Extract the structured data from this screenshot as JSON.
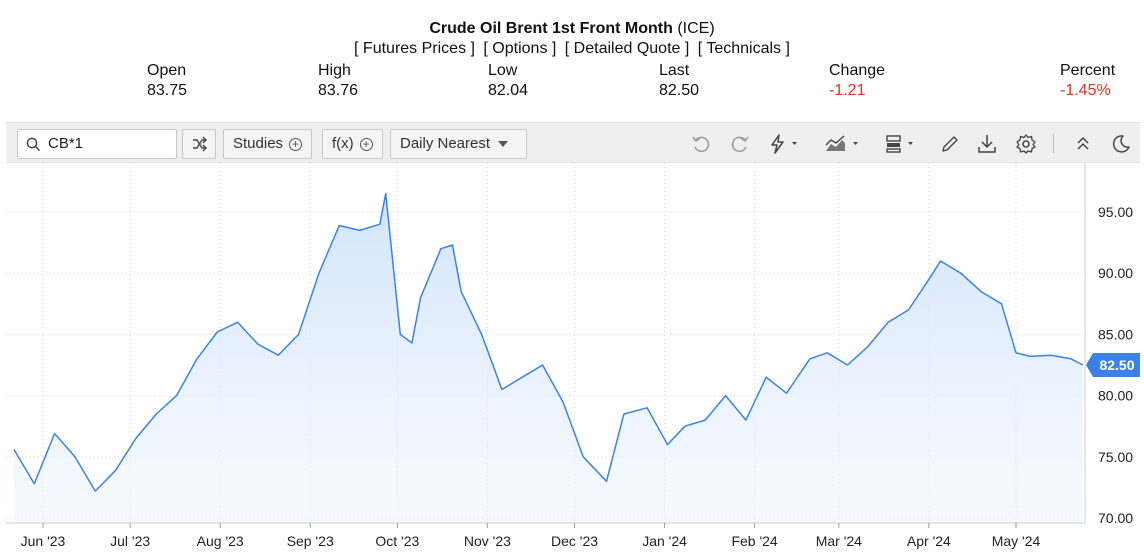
{
  "header": {
    "title_bold": "Crude Oil Brent 1st Front Month",
    "title_suffix": "(ICE)",
    "links": [
      "[ Futures Prices ]",
      "[ Options ]",
      "[ Detailed Quote ]",
      "[ Technicals ]"
    ]
  },
  "quote": {
    "open_label": "Open",
    "open_value": "83.75",
    "high_label": "High",
    "high_value": "83.76",
    "low_label": "Low",
    "low_value": "82.04",
    "last_label": "Last",
    "last_value": "82.50",
    "change_label": "Change",
    "change_value": "-1.21",
    "percent_label": "Percent",
    "percent_value": "-1.45%"
  },
  "toolbar": {
    "search_value": "CB*1",
    "studies_label": "Studies",
    "fx_label": "f(x)",
    "interval_label": "Daily Nearest"
  },
  "icons": [
    "search-icon",
    "shuffle-icon",
    "undo-icon",
    "redo-icon",
    "lightning-icon",
    "area-chart-icon",
    "layout-icon",
    "pencil-icon",
    "download-icon",
    "gear-icon",
    "collapse-icon",
    "dark-mode-icon"
  ],
  "colors": {
    "line": "#3b82e6",
    "fill_top": "#cfe2fb",
    "last_price_tag": "#3b82e6",
    "negative": "#e0301e"
  },
  "chart_data": {
    "type": "area",
    "title": "",
    "xlabel": "",
    "ylabel": "",
    "ylim": [
      70,
      98
    ],
    "y_ticks": [
      "70.00",
      "75.00",
      "80.00",
      "85.00",
      "90.00",
      "95.00"
    ],
    "x_ticks": [
      "Jun '23",
      "Jul '23",
      "Aug '23",
      "Sep '23",
      "Oct '23",
      "Nov '23",
      "Dec '23",
      "Jan '24",
      "Feb '24",
      "Mar '24",
      "Apr '24",
      "May '24"
    ],
    "last_price_label": "82.50",
    "x_dates": [
      "2023-05-22",
      "2023-05-29",
      "2023-06-05",
      "2023-06-12",
      "2023-06-19",
      "2023-06-26",
      "2023-07-03",
      "2023-07-10",
      "2023-07-17",
      "2023-07-24",
      "2023-07-31",
      "2023-08-07",
      "2023-08-14",
      "2023-08-21",
      "2023-08-28",
      "2023-09-04",
      "2023-09-11",
      "2023-09-18",
      "2023-09-25",
      "2023-09-27",
      "2023-10-02",
      "2023-10-06",
      "2023-10-09",
      "2023-10-16",
      "2023-10-20",
      "2023-10-23",
      "2023-10-30",
      "2023-11-06",
      "2023-11-13",
      "2023-11-20",
      "2023-11-27",
      "2023-12-04",
      "2023-12-12",
      "2023-12-18",
      "2023-12-26",
      "2024-01-02",
      "2024-01-08",
      "2024-01-15",
      "2024-01-22",
      "2024-01-29",
      "2024-02-05",
      "2024-02-12",
      "2024-02-20",
      "2024-02-26",
      "2024-03-04",
      "2024-03-11",
      "2024-03-18",
      "2024-03-25",
      "2024-04-01",
      "2024-04-05",
      "2024-04-12",
      "2024-04-19",
      "2024-04-26",
      "2024-05-01",
      "2024-05-06",
      "2024-05-13",
      "2024-05-20",
      "2024-05-24"
    ],
    "series": [
      {
        "values": [
          75.6,
          72.8,
          76.9,
          75.0,
          72.2,
          73.9,
          76.5,
          78.5,
          80.0,
          83.0,
          85.2,
          86.0,
          84.2,
          83.3,
          85.0,
          90.0,
          93.9,
          93.5,
          94.0,
          96.5,
          85.0,
          84.3,
          88.0,
          92.0,
          92.3,
          88.5,
          85.0,
          80.5,
          81.5,
          82.5,
          79.5,
          75.0,
          73.0,
          78.5,
          79.0,
          76.0,
          77.5,
          78.0,
          80.0,
          78.0,
          81.5,
          80.2,
          83.0,
          83.5,
          82.5,
          84.0,
          86.0,
          87.0,
          89.5,
          91.0,
          90.0,
          88.5,
          87.5,
          83.5,
          83.2,
          83.3,
          83.0,
          82.5
        ]
      }
    ]
  }
}
